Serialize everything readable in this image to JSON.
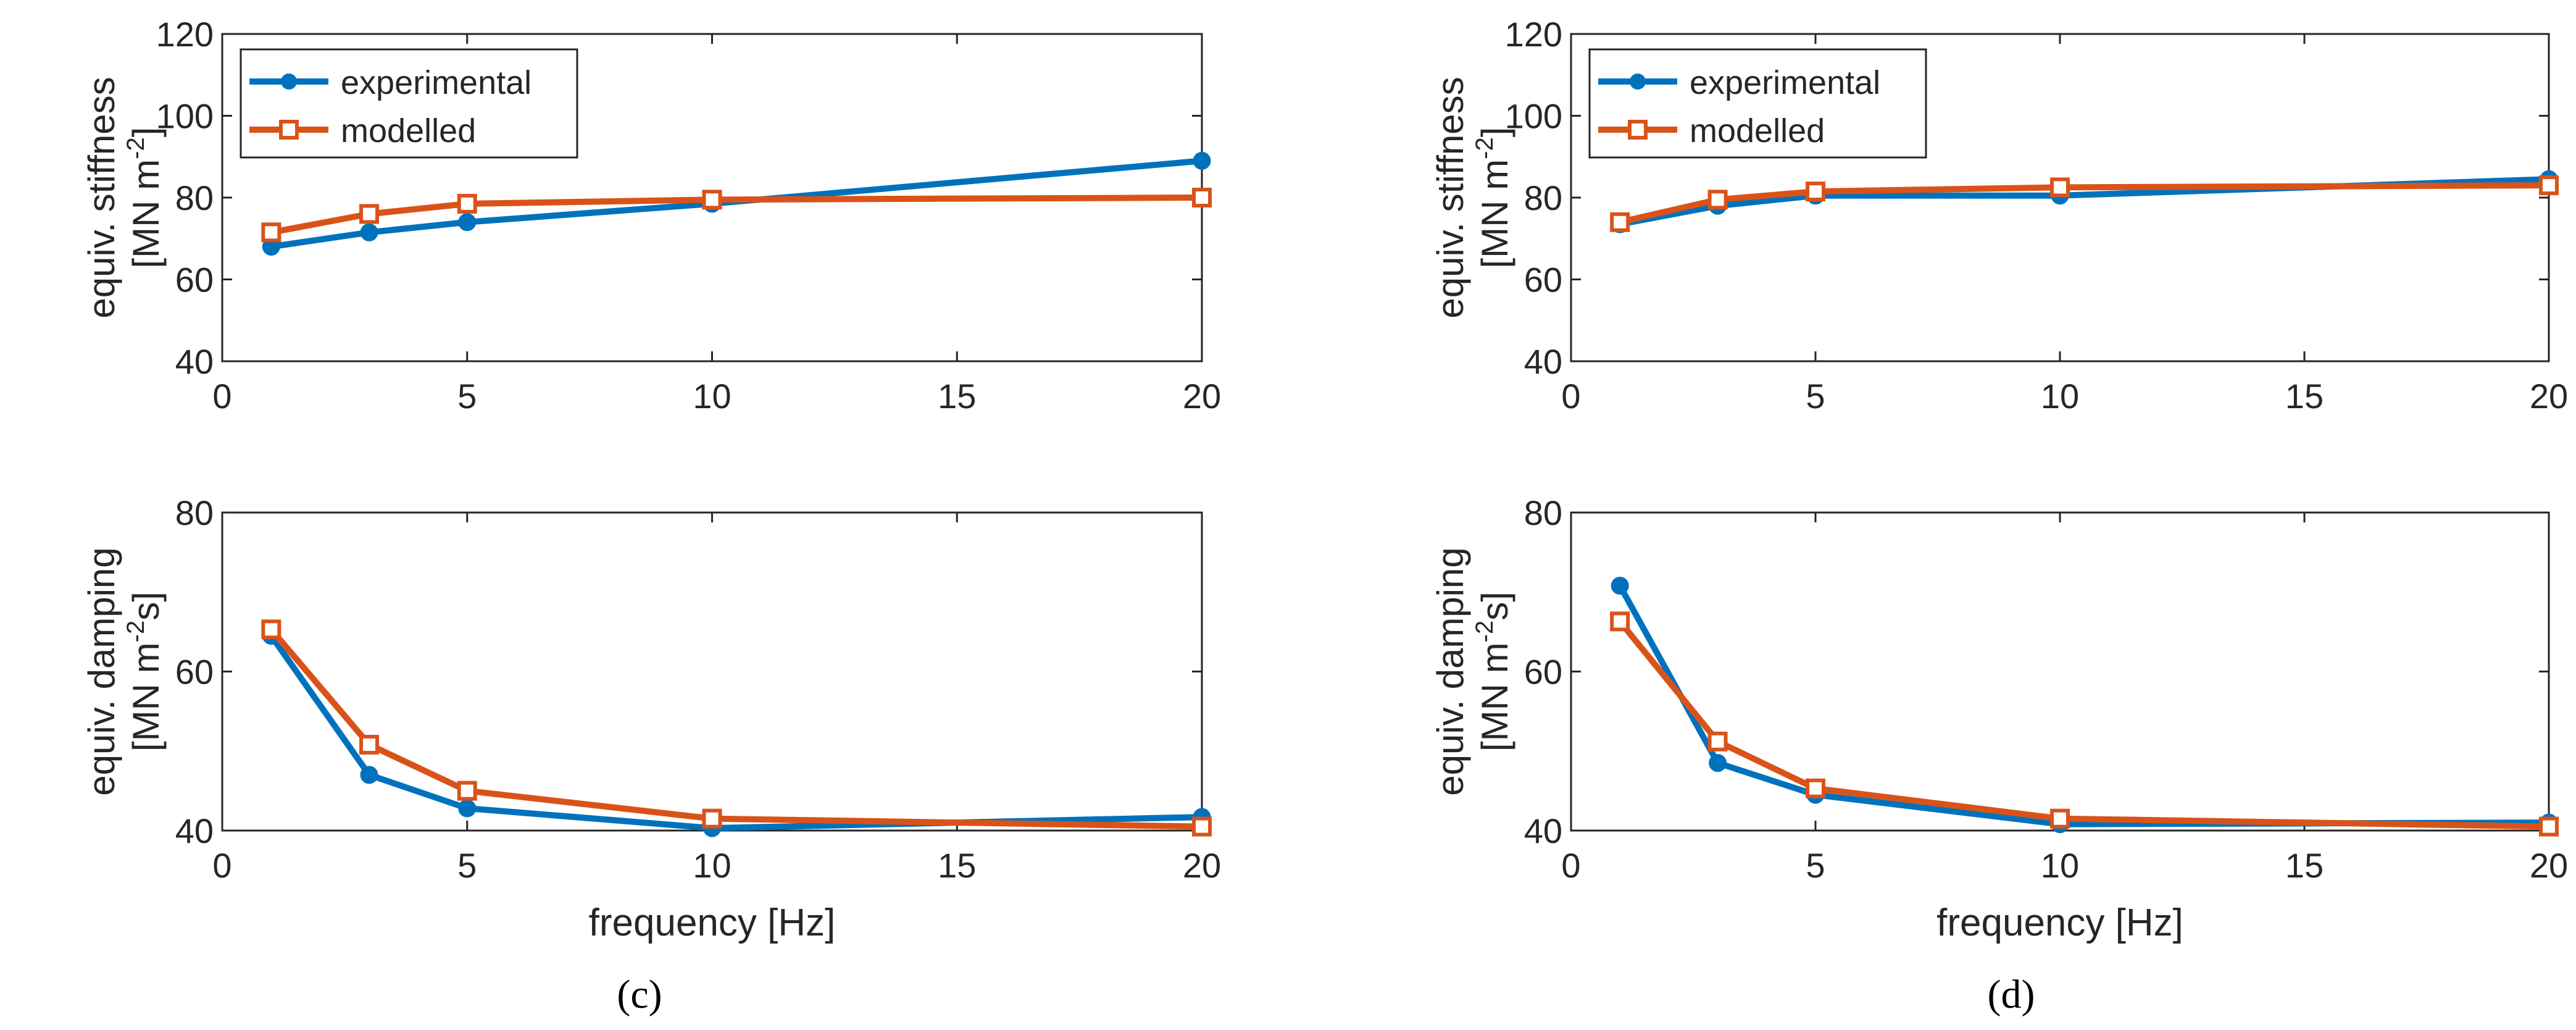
{
  "figure": {
    "panels": [
      {
        "label": "(c)"
      },
      {
        "label": "(d)"
      }
    ]
  },
  "chart_data": [
    {
      "type": "line",
      "panel": "(c)",
      "row": "top",
      "x": [
        1,
        3,
        5,
        10,
        20
      ],
      "xlim": [
        0,
        20
      ],
      "xticks": [
        0,
        5,
        10,
        15,
        20
      ],
      "ylim": [
        40,
        120
      ],
      "yticks": [
        40,
        60,
        80,
        100,
        120
      ],
      "xlabel": "",
      "ylabel_line1": "equiv. stiffness",
      "ylabel_unit": {
        "pre": "[MN m",
        "sup": "-2",
        "post": "]"
      },
      "legend": {
        "placement": "top-left",
        "entries": [
          "experimental",
          "modelled"
        ]
      },
      "series": [
        {
          "name": "experimental",
          "color": "#0072BD",
          "marker": "circle",
          "values": [
            68,
            71.5,
            74,
            78.5,
            89
          ]
        },
        {
          "name": "modelled",
          "color": "#D95319",
          "marker": "square",
          "values": [
            71.5,
            76,
            78.5,
            79.5,
            80
          ]
        }
      ]
    },
    {
      "type": "line",
      "panel": "(c)",
      "row": "bottom",
      "x": [
        1,
        3,
        5,
        10,
        20
      ],
      "xlim": [
        0,
        20
      ],
      "xticks": [
        0,
        5,
        10,
        15,
        20
      ],
      "ylim": [
        40,
        80
      ],
      "yticks": [
        40,
        60,
        80
      ],
      "xlabel": "frequency [Hz]",
      "ylabel_line1": "equiv. damping",
      "ylabel_unit": {
        "pre": "[MN m",
        "sup": "-2",
        "post": "s]"
      },
      "series": [
        {
          "name": "experimental",
          "color": "#0072BD",
          "marker": "circle",
          "values": [
            64.5,
            47,
            42.8,
            40.3,
            41.7
          ]
        },
        {
          "name": "modelled",
          "color": "#D95319",
          "marker": "square",
          "values": [
            65.3,
            50.8,
            45,
            41.5,
            40.5
          ]
        }
      ]
    },
    {
      "type": "line",
      "panel": "(d)",
      "row": "top",
      "x": [
        1,
        3,
        5,
        10,
        20
      ],
      "xlim": [
        0,
        20
      ],
      "xticks": [
        0,
        5,
        10,
        15,
        20
      ],
      "ylim": [
        40,
        120
      ],
      "yticks": [
        40,
        60,
        80,
        100,
        120
      ],
      "xlabel": "",
      "ylabel_line1": "equiv. stiffness",
      "ylabel_unit": {
        "pre": "[MN m",
        "sup": "-2",
        "post": "]"
      },
      "legend": {
        "placement": "top-left",
        "entries": [
          "experimental",
          "modelled"
        ]
      },
      "series": [
        {
          "name": "experimental",
          "color": "#0072BD",
          "marker": "circle",
          "values": [
            73.5,
            78,
            80.5,
            80.5,
            84.5
          ]
        },
        {
          "name": "modelled",
          "color": "#D95319",
          "marker": "square",
          "values": [
            74,
            79.5,
            81.5,
            82.5,
            83
          ]
        }
      ]
    },
    {
      "type": "line",
      "panel": "(d)",
      "row": "bottom",
      "x": [
        1,
        3,
        5,
        10,
        20
      ],
      "xlim": [
        0,
        20
      ],
      "xticks": [
        0,
        5,
        10,
        15,
        20
      ],
      "ylim": [
        40,
        80
      ],
      "yticks": [
        40,
        60,
        80
      ],
      "xlabel": "frequency [Hz]",
      "ylabel_line1": "equiv. damping",
      "ylabel_unit": {
        "pre": "[MN m",
        "sup": "-2",
        "post": "s]"
      },
      "series": [
        {
          "name": "experimental",
          "color": "#0072BD",
          "marker": "circle",
          "values": [
            70.8,
            48.5,
            44.5,
            40.8,
            41
          ]
        },
        {
          "name": "modelled",
          "color": "#D95319",
          "marker": "square",
          "values": [
            66.3,
            51.2,
            45.3,
            41.5,
            40.5
          ]
        }
      ]
    }
  ]
}
